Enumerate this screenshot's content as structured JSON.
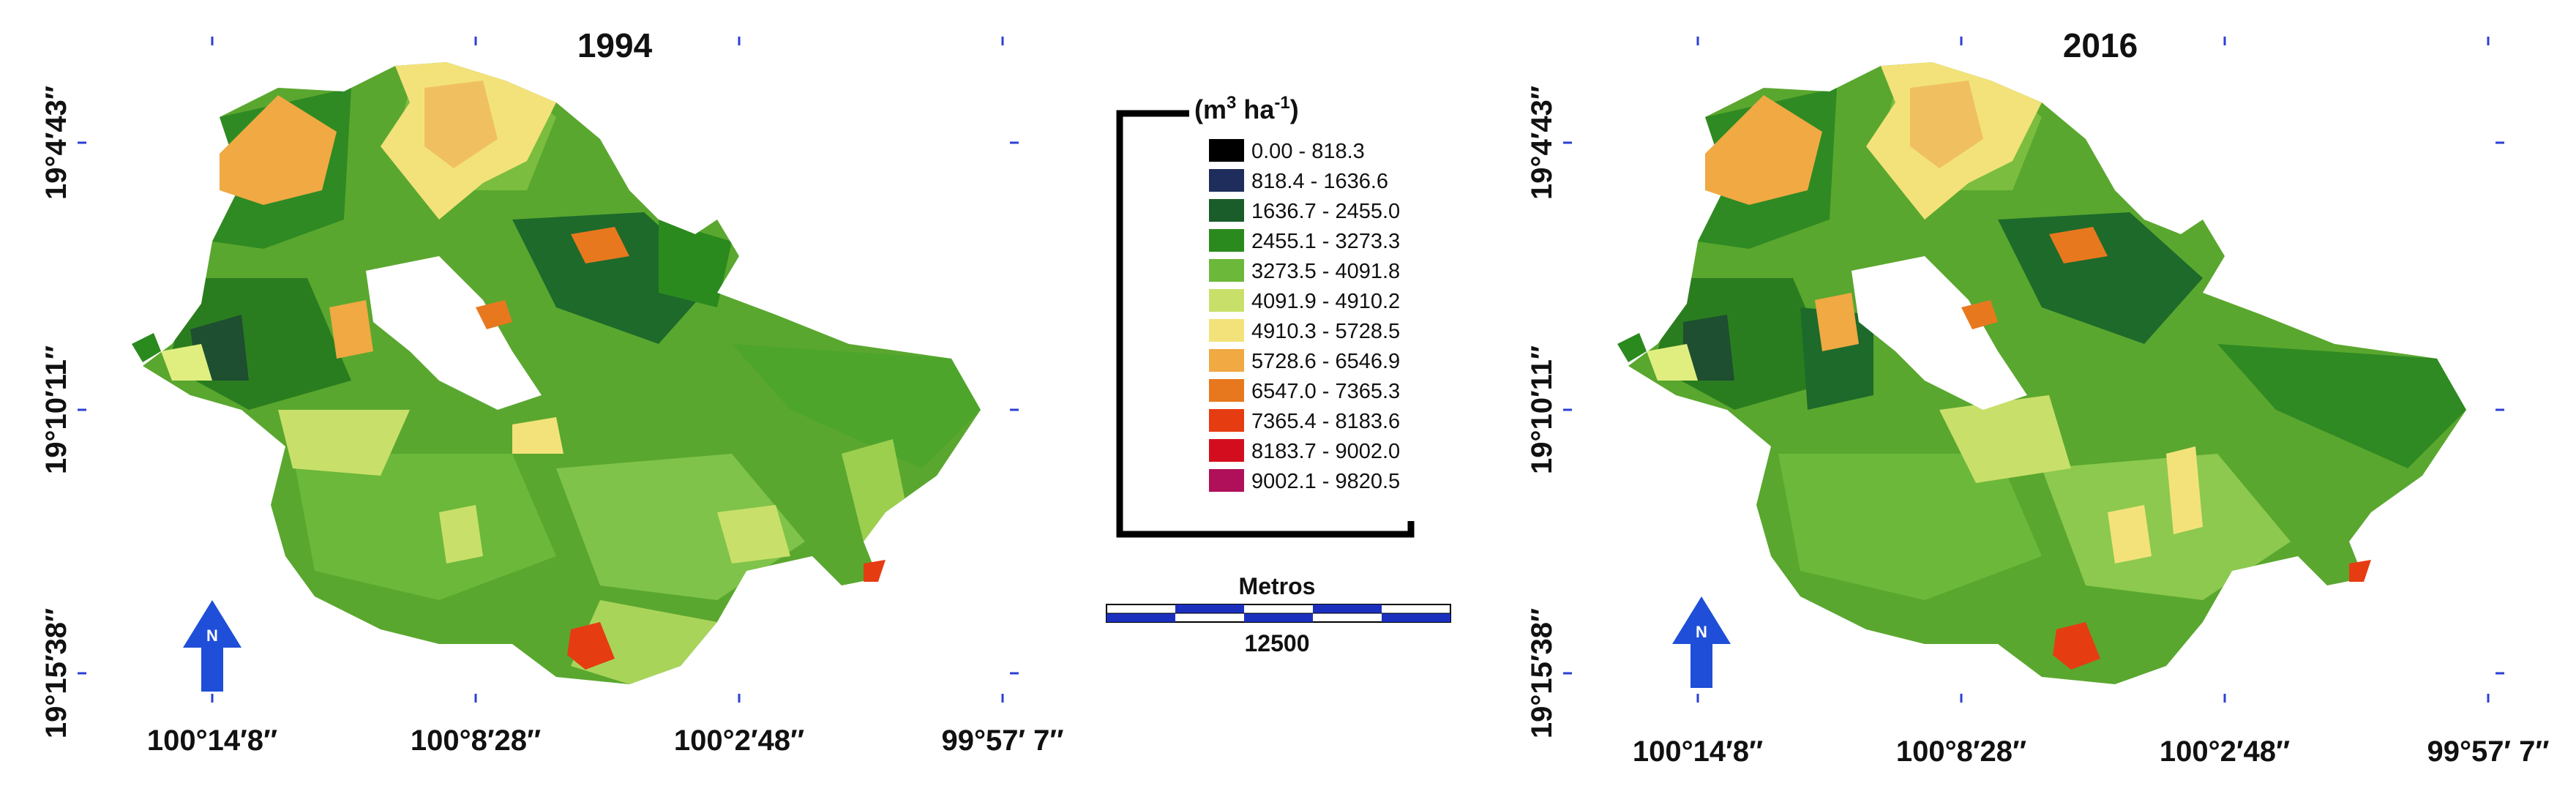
{
  "maps": [
    {
      "title": "1994",
      "x_ticks": [
        "100°14′8″",
        "100°8′28″",
        "100°2′48″",
        "99°57′ 7″"
      ],
      "y_ticks": [
        "19°4′43″",
        "19°10′11″",
        "19°15′38″"
      ],
      "north_label": "N"
    },
    {
      "title": "2016",
      "x_ticks": [
        "100°14′8″",
        "100°8′28″",
        "100°2′48″",
        "99°57′ 7″"
      ],
      "y_ticks": [
        "19°4′43″",
        "19°10′11″",
        "19°15′38″"
      ],
      "north_label": "N"
    }
  ],
  "legend": {
    "unit_prefix": "(m",
    "unit_sup1": "3",
    "unit_mid": " ha",
    "unit_sup2": "-1",
    "unit_suffix": ")",
    "classes": [
      {
        "label": "0.00 - 818.3",
        "color": "#000000"
      },
      {
        "label": "818.4 - 1636.6",
        "color": "#1f2d5c"
      },
      {
        "label": "1636.7 - 2455.0",
        "color": "#1a5c2a"
      },
      {
        "label": "2455.1 - 3273.3",
        "color": "#2a8a1e"
      },
      {
        "label": "3273.5 - 4091.8",
        "color": "#6cb83a"
      },
      {
        "label": "4091.9 - 4910.2",
        "color": "#c8e06a"
      },
      {
        "label": "4910.3 - 5728.5",
        "color": "#f3e27a"
      },
      {
        "label": "5728.6 - 6546.9",
        "color": "#f0a943"
      },
      {
        "label": "6547.0 - 7365.3",
        "color": "#e8781e"
      },
      {
        "label": "7365.4 - 8183.6",
        "color": "#e63c12"
      },
      {
        "label": "8183.7 - 9002.0",
        "color": "#d40d1e"
      },
      {
        "label": "9002.1 - 9820.5",
        "color": "#b0105a"
      }
    ]
  },
  "scale_bar": {
    "title": "Metros",
    "value": "12500"
  },
  "colors": {
    "tick": "#2b3fd6",
    "north_arrow": "#1f4fd8",
    "scale_dark": "#1b2fbf"
  }
}
